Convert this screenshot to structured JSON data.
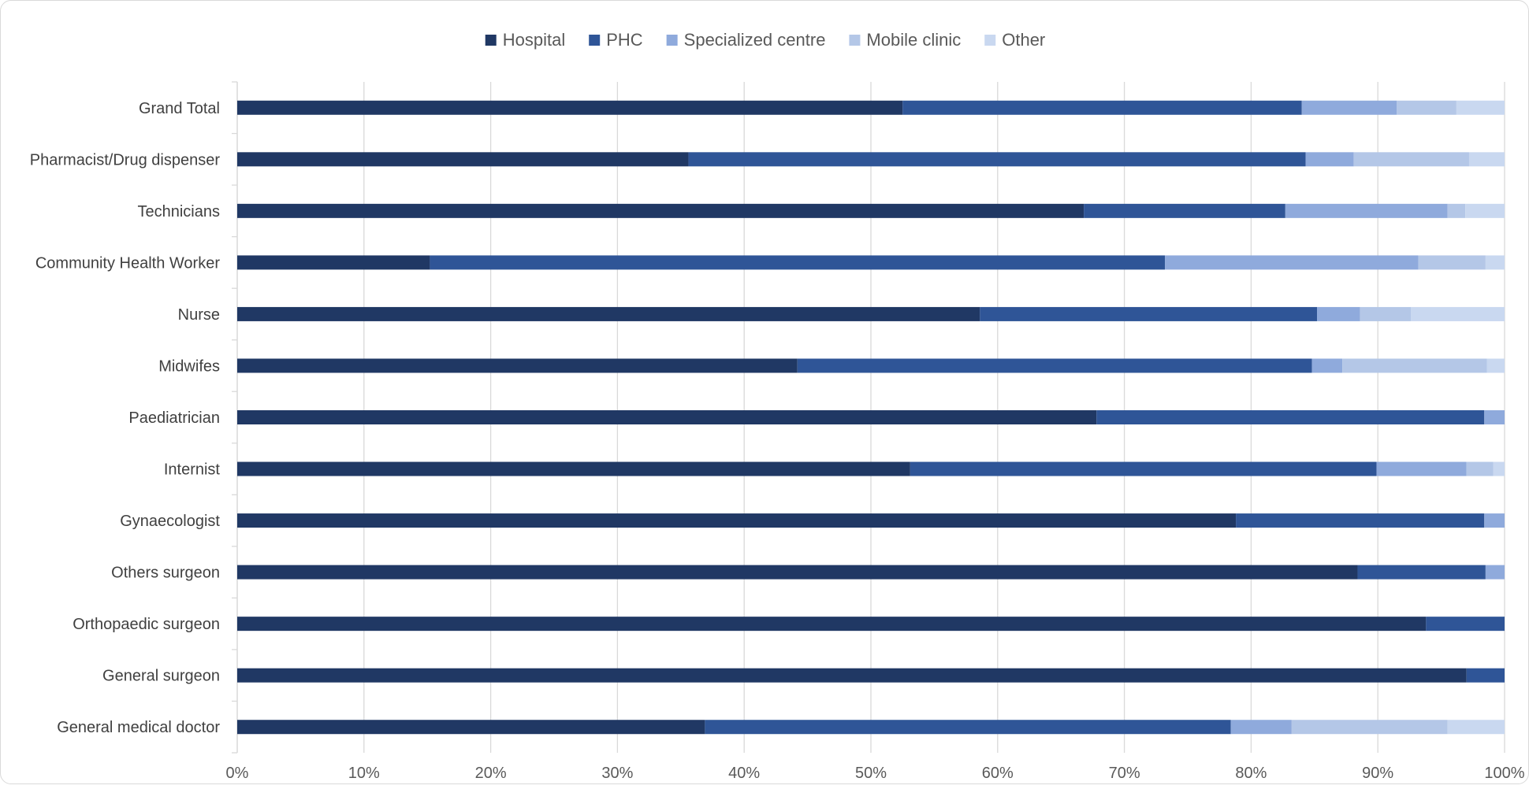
{
  "chart_data": {
    "type": "bar",
    "orientation": "horizontal",
    "stacked": "percent",
    "categories": [
      "Grand Total",
      "Pharmacist/Drug dispenser",
      "Technicians",
      "Community Health Worker",
      "Nurse",
      "Midwifes",
      "Paediatrician",
      "Internist",
      "Gynaecologist",
      "Others surgeon",
      "Orthopaedic surgeon",
      "General surgeon",
      "General medical doctor"
    ],
    "series": [
      {
        "name": "Hospital",
        "color": "#203864",
        "values": [
          52.5,
          35.6,
          66.8,
          15.2,
          58.6,
          44.2,
          67.8,
          53.1,
          78.8,
          88.4,
          93.8,
          97.0,
          36.9
        ]
      },
      {
        "name": "PHC",
        "color": "#2f5597",
        "values": [
          31.5,
          48.7,
          15.9,
          58.0,
          26.6,
          40.6,
          30.6,
          36.8,
          19.6,
          10.1,
          6.2,
          3.0,
          41.5
        ]
      },
      {
        "name": "Specialized centre",
        "color": "#8faadc",
        "values": [
          7.5,
          3.8,
          12.8,
          20.0,
          3.4,
          2.4,
          1.6,
          7.1,
          1.6,
          1.5,
          0.0,
          0.0,
          4.8
        ]
      },
      {
        "name": "Mobile clinic",
        "color": "#b4c7e7",
        "values": [
          4.7,
          9.1,
          1.4,
          5.3,
          4.0,
          11.4,
          0.0,
          2.1,
          0.0,
          0.0,
          0.0,
          0.0,
          12.3
        ]
      },
      {
        "name": "Other",
        "color": "#c9d8f0",
        "values": [
          3.8,
          2.8,
          3.1,
          1.5,
          7.4,
          1.4,
          0.0,
          0.9,
          0.0,
          0.0,
          0.0,
          0.0,
          4.5
        ]
      }
    ],
    "x_ticks": [
      "0%",
      "10%",
      "20%",
      "30%",
      "40%",
      "50%",
      "60%",
      "70%",
      "80%",
      "90%",
      "100%"
    ],
    "xlim": [
      0,
      100
    ],
    "grid": "vertical",
    "legend_position": "top",
    "title": "",
    "xlabel": "",
    "ylabel": "",
    "colors": {
      "grid": "#d9d9d9",
      "label": "#404040",
      "tick": "#595959",
      "legend_text": "#595959"
    }
  }
}
